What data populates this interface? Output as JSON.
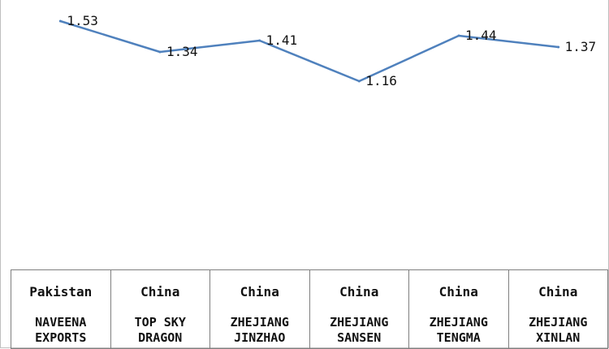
{
  "chart_data": {
    "type": "line",
    "title": "",
    "xlabel": "",
    "ylabel": "",
    "ylim": [
      0.0,
      1.6
    ],
    "grid": false,
    "legend": "none",
    "line_color": "#4f81bd",
    "categories": [
      {
        "country": "Pakistan",
        "company": "NAVEENA EXPORTS"
      },
      {
        "country": "China",
        "company": "TOP SKY DRAGON"
      },
      {
        "country": "China",
        "company": "ZHEJIANG JINZHAO"
      },
      {
        "country": "China",
        "company": "ZHEJIANG SANSEN"
      },
      {
        "country": "China",
        "company": "ZHEJIANG TENGMA"
      },
      {
        "country": "China",
        "company": "ZHEJIANG XINLAN"
      }
    ],
    "values": [
      1.53,
      1.34,
      1.41,
      1.16,
      1.44,
      1.37
    ],
    "data_labels": [
      "1.53",
      "1.34",
      "1.41",
      "1.16",
      "1.44",
      "1.37"
    ]
  }
}
